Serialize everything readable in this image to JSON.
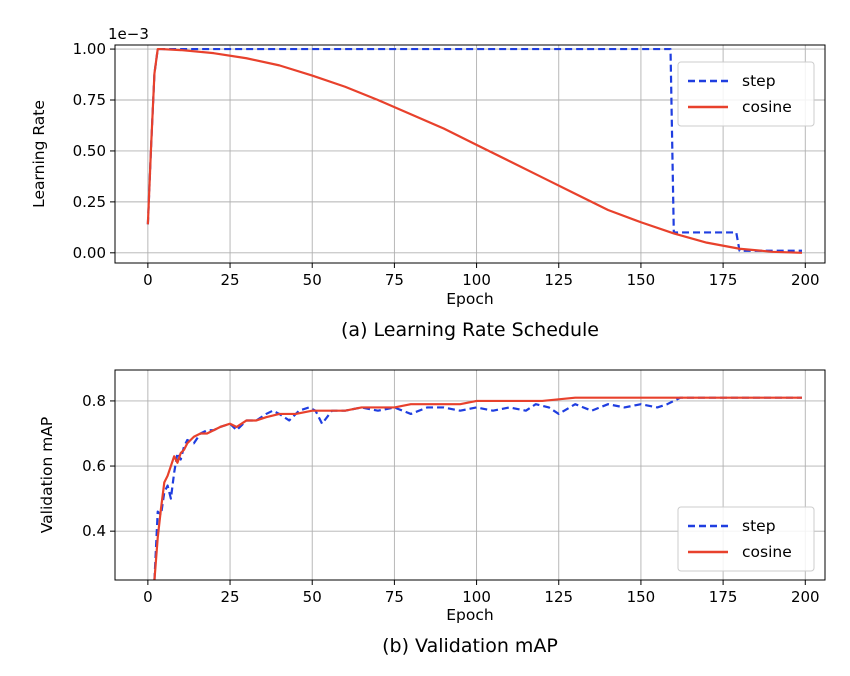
{
  "chart_data": [
    {
      "type": "line",
      "caption": "(a) Learning Rate Schedule",
      "xlabel": "Epoch",
      "ylabel": "Learning Rate",
      "offset_text": "1e−3",
      "xlim": [
        -10,
        206
      ],
      "ylim": [
        -5e-05,
        0.00102
      ],
      "xticks": [
        0,
        25,
        50,
        75,
        100,
        125,
        150,
        175,
        200
      ],
      "xtick_labels": [
        "0",
        "25",
        "50",
        "75",
        "100",
        "125",
        "150",
        "175",
        "200"
      ],
      "yticks": [
        0,
        0.00025,
        0.0005,
        0.00075,
        0.001
      ],
      "ytick_labels": [
        "0.00",
        "0.25",
        "0.50",
        "0.75",
        "1.00"
      ],
      "grid": true,
      "legend_position": "top-right",
      "series": [
        {
          "name": "step",
          "color": "#1f3ee0",
          "style": "dashed",
          "x": [
            0,
            1,
            2,
            3,
            4,
            159,
            160,
            179,
            180,
            199
          ],
          "y": [
            0.00014,
            0.00053,
            0.00088,
            0.001,
            0.001,
            0.001,
            0.0001,
            0.0001,
            1e-05,
            1e-05
          ]
        },
        {
          "name": "cosine",
          "color": "#e8412c",
          "style": "solid",
          "x": [
            0,
            1,
            2,
            3,
            4,
            10,
            20,
            30,
            40,
            50,
            60,
            70,
            80,
            90,
            100,
            110,
            120,
            130,
            140,
            150,
            160,
            170,
            180,
            190,
            199
          ],
          "y": [
            0.00014,
            0.00053,
            0.00088,
            0.001,
            0.001,
            0.000995,
            0.00098,
            0.000955,
            0.00092,
            0.00087,
            0.000815,
            0.00075,
            0.00068,
            0.00061,
            0.00053,
            0.00045,
            0.00037,
            0.00029,
            0.00021,
            0.00015,
            9.5e-05,
            5e-05,
            2e-05,
            5e-06,
            0.0
          ]
        }
      ]
    },
    {
      "type": "line",
      "caption": "(b) Validation mAP",
      "xlabel": "Epoch",
      "ylabel": "Validation mAP",
      "xlim": [
        -10,
        206
      ],
      "ylim": [
        0.25,
        0.895
      ],
      "xticks": [
        0,
        25,
        50,
        75,
        100,
        125,
        150,
        175,
        200
      ],
      "xtick_labels": [
        "0",
        "25",
        "50",
        "75",
        "100",
        "125",
        "150",
        "175",
        "200"
      ],
      "yticks": [
        0.4,
        0.6,
        0.8
      ],
      "ytick_labels": [
        "0.4",
        "0.6",
        "0.8"
      ],
      "grid": true,
      "legend_position": "lower-right",
      "series": [
        {
          "name": "step",
          "color": "#1f3ee0",
          "style": "dashed",
          "x": [
            2,
            3,
            4,
            5,
            6,
            7,
            8,
            9,
            10,
            11,
            12,
            14,
            16,
            18,
            20,
            22,
            25,
            27,
            30,
            33,
            36,
            38,
            40,
            43,
            46,
            49,
            51,
            53,
            56,
            60,
            65,
            70,
            75,
            80,
            85,
            90,
            95,
            100,
            105,
            110,
            115,
            118,
            122,
            125,
            130,
            135,
            140,
            145,
            150,
            155,
            158,
            160,
            162,
            165,
            170,
            175,
            180,
            185,
            190,
            195,
            199
          ],
          "y": [
            0.25,
            0.46,
            0.45,
            0.52,
            0.54,
            0.5,
            0.58,
            0.64,
            0.62,
            0.66,
            0.68,
            0.67,
            0.7,
            0.71,
            0.71,
            0.72,
            0.73,
            0.71,
            0.74,
            0.74,
            0.76,
            0.77,
            0.76,
            0.74,
            0.77,
            0.78,
            0.77,
            0.73,
            0.77,
            0.77,
            0.78,
            0.77,
            0.78,
            0.76,
            0.78,
            0.78,
            0.77,
            0.78,
            0.77,
            0.78,
            0.77,
            0.79,
            0.78,
            0.76,
            0.79,
            0.77,
            0.79,
            0.78,
            0.79,
            0.78,
            0.79,
            0.8,
            0.81,
            0.81,
            0.81,
            0.81,
            0.81,
            0.81,
            0.81,
            0.81,
            0.81
          ]
        },
        {
          "name": "cosine",
          "color": "#e8412c",
          "style": "solid",
          "x": [
            2,
            3,
            4,
            5,
            6,
            7,
            8,
            9,
            10,
            11,
            12,
            14,
            16,
            18,
            20,
            22,
            25,
            27,
            30,
            33,
            36,
            40,
            45,
            50,
            55,
            60,
            65,
            70,
            75,
            80,
            85,
            90,
            95,
            100,
            110,
            120,
            130,
            140,
            150,
            160,
            170,
            175,
            180,
            190,
            199
          ],
          "y": [
            0.25,
            0.38,
            0.47,
            0.55,
            0.57,
            0.6,
            0.63,
            0.61,
            0.64,
            0.65,
            0.67,
            0.69,
            0.7,
            0.7,
            0.71,
            0.72,
            0.73,
            0.72,
            0.74,
            0.74,
            0.75,
            0.76,
            0.76,
            0.77,
            0.77,
            0.77,
            0.78,
            0.78,
            0.78,
            0.79,
            0.79,
            0.79,
            0.79,
            0.8,
            0.8,
            0.8,
            0.81,
            0.81,
            0.81,
            0.81,
            0.81,
            0.81,
            0.81,
            0.81,
            0.81
          ]
        }
      ]
    }
  ]
}
